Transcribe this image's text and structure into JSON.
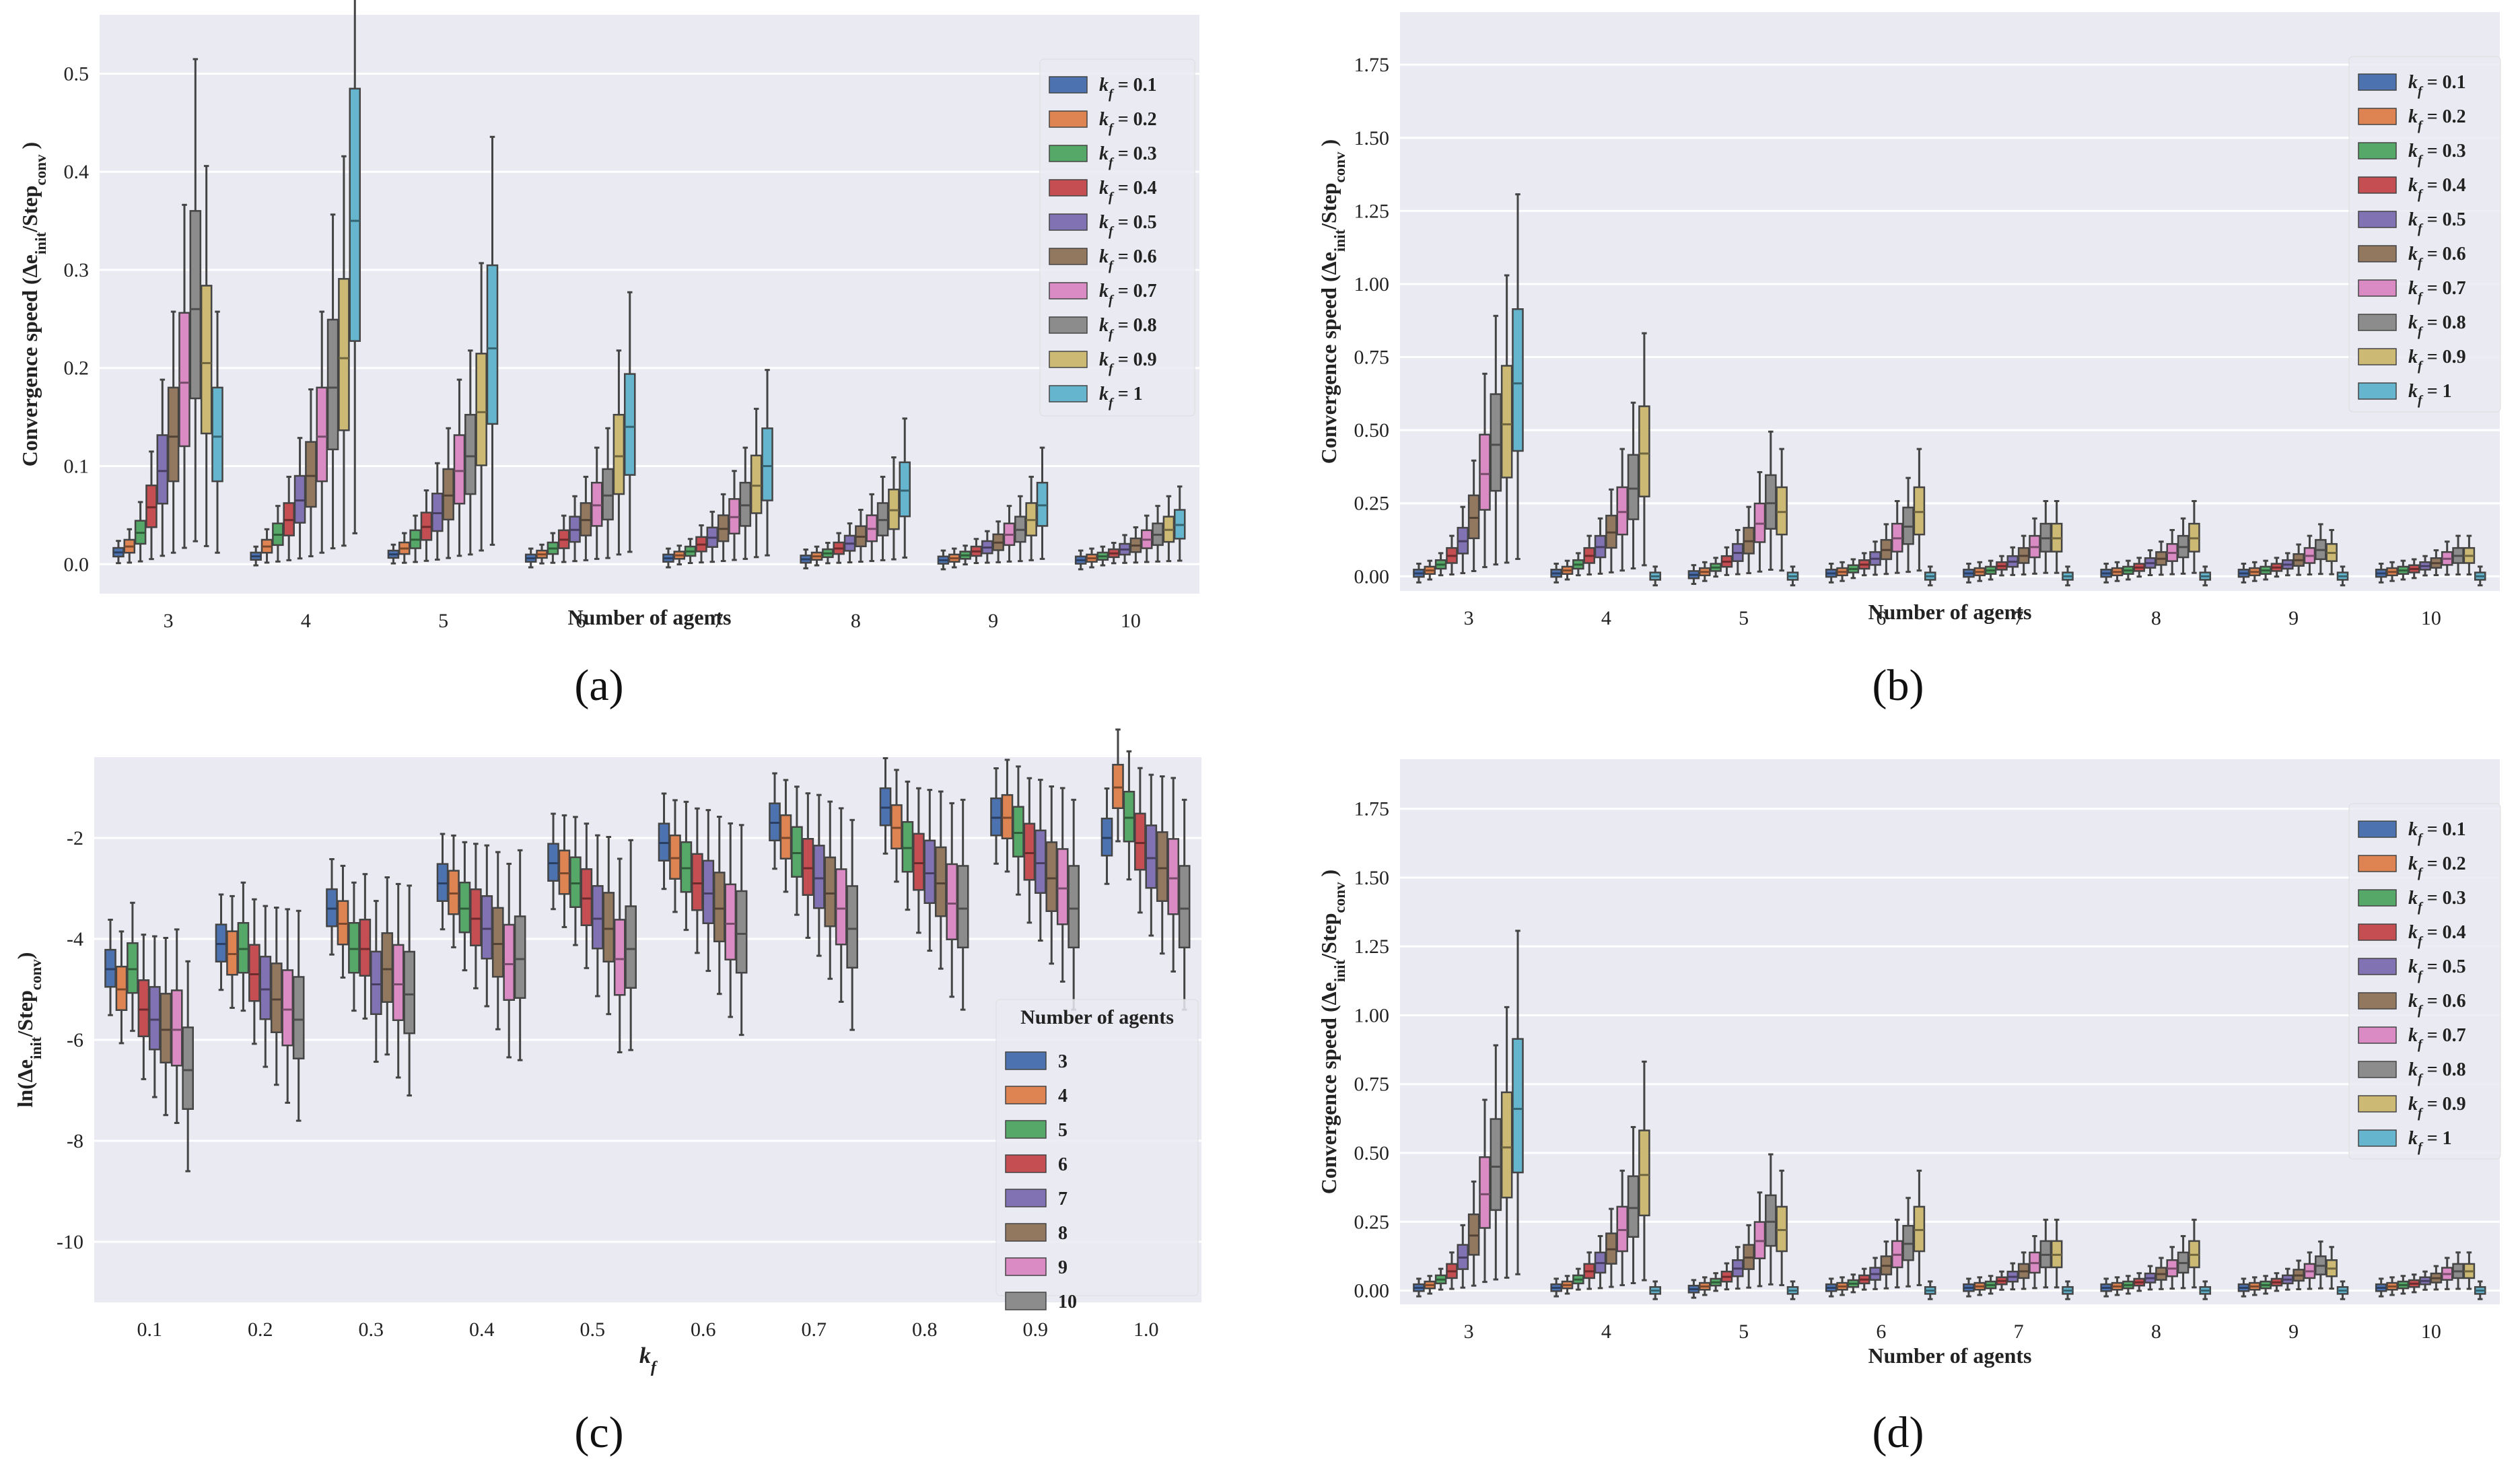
{
  "figure": {
    "captions": [
      "(a)",
      "(b)",
      "(c)",
      "(d)"
    ]
  },
  "chart_data": [
    {
      "id": "a",
      "type": "box",
      "title": "",
      "xlabel": "Number of agents",
      "ylabel": "Convergence speed (Δe_init/Step_conv )",
      "ylabel_parts": [
        "Convergence speed (Δe",
        "init",
        "/Step",
        "conv",
        " )"
      ],
      "categories": [
        "3",
        "4",
        "5",
        "6",
        "7",
        "8",
        "9",
        "10"
      ],
      "ylim": [
        -0.03,
        0.56
      ],
      "yticks": [
        0.0,
        0.1,
        0.2,
        0.3,
        0.4,
        0.5
      ],
      "ytick_labels": [
        "0.0",
        "0.1",
        "0.2",
        "0.3",
        "0.4",
        "0.5"
      ],
      "legend_title": "",
      "legend_location": "upper right",
      "legend": [
        {
          "label": "k_f = 0.1",
          "color": "#4c72b0"
        },
        {
          "label": "k_f = 0.2",
          "color": "#dd8452"
        },
        {
          "label": "k_f = 0.3",
          "color": "#55a868"
        },
        {
          "label": "k_f = 0.4",
          "color": "#c44e52"
        },
        {
          "label": "k_f = 0.5",
          "color": "#8172b3"
        },
        {
          "label": "k_f = 0.6",
          "color": "#937860"
        },
        {
          "label": "k_f = 0.7",
          "color": "#da8bc3"
        },
        {
          "label": "k_f = 0.8",
          "color": "#8c8c8c"
        },
        {
          "label": "k_f = 0.9",
          "color": "#ccb974"
        },
        {
          "label": "k_f = 1",
          "color": "#64b5cd"
        }
      ],
      "legend_parts": [
        [
          "k",
          "f",
          " = 0.1"
        ],
        [
          "k",
          "f",
          " = 0.2"
        ],
        [
          "k",
          "f",
          " = 0.3"
        ],
        [
          "k",
          "f",
          " = 0.4"
        ],
        [
          "k",
          "f",
          " = 0.5"
        ],
        [
          "k",
          "f",
          " = 0.6"
        ],
        [
          "k",
          "f",
          " = 0.7"
        ],
        [
          "k",
          "f",
          " = 0.8"
        ],
        [
          "k",
          "f",
          " = 0.9"
        ],
        [
          "k",
          "f",
          " = 1"
        ]
      ],
      "medians": [
        [
          0.012,
          0.018,
          0.032,
          0.058,
          0.095,
          0.13,
          0.185,
          0.26,
          0.205,
          0.13
        ],
        [
          0.008,
          0.018,
          0.03,
          0.045,
          0.065,
          0.09,
          0.13,
          0.18,
          0.21,
          0.35
        ],
        [
          0.01,
          0.016,
          0.025,
          0.038,
          0.052,
          0.07,
          0.095,
          0.11,
          0.155,
          0.22
        ],
        [
          0.006,
          0.01,
          0.016,
          0.025,
          0.035,
          0.045,
          0.06,
          0.07,
          0.11,
          0.14
        ],
        [
          0.006,
          0.009,
          0.013,
          0.02,
          0.027,
          0.036,
          0.048,
          0.06,
          0.08,
          0.1
        ],
        [
          0.005,
          0.008,
          0.011,
          0.016,
          0.021,
          0.028,
          0.036,
          0.045,
          0.055,
          0.075
        ],
        [
          0.004,
          0.006,
          0.009,
          0.013,
          0.017,
          0.022,
          0.03,
          0.035,
          0.045,
          0.06
        ],
        [
          0.004,
          0.006,
          0.008,
          0.011,
          0.015,
          0.019,
          0.025,
          0.03,
          0.035,
          0.04
        ]
      ]
    },
    {
      "id": "b",
      "type": "box",
      "title": "",
      "xlabel": "Number of agents",
      "ylabel": "Convergence speed (Δe_init/Step_conv )",
      "ylabel_parts": [
        "Convergence speed (Δe",
        "init",
        "/Step",
        "conv",
        " )"
      ],
      "categories": [
        "3",
        "4",
        "5",
        "6",
        "7",
        "8",
        "9",
        "10"
      ],
      "ylim": [
        -0.05,
        1.93
      ],
      "yticks": [
        0.0,
        0.25,
        0.5,
        0.75,
        1.0,
        1.25,
        1.5,
        1.75
      ],
      "ytick_labels": [
        "0.00",
        "0.25",
        "0.50",
        "0.75",
        "1.00",
        "1.25",
        "1.50",
        "1.75"
      ],
      "legend_title": "",
      "legend_location": "upper right",
      "legend": [
        {
          "label": "k_f = 0.1",
          "color": "#4c72b0"
        },
        {
          "label": "k_f = 0.2",
          "color": "#dd8452"
        },
        {
          "label": "k_f = 0.3",
          "color": "#55a868"
        },
        {
          "label": "k_f = 0.4",
          "color": "#c44e52"
        },
        {
          "label": "k_f = 0.5",
          "color": "#8172b3"
        },
        {
          "label": "k_f = 0.6",
          "color": "#937860"
        },
        {
          "label": "k_f = 0.7",
          "color": "#da8bc3"
        },
        {
          "label": "k_f = 0.8",
          "color": "#8c8c8c"
        },
        {
          "label": "k_f = 0.9",
          "color": "#ccb974"
        },
        {
          "label": "k_f = 1",
          "color": "#64b5cd"
        }
      ],
      "legend_parts": [
        [
          "k",
          "f",
          " = 0.1"
        ],
        [
          "k",
          "f",
          " = 0.2"
        ],
        [
          "k",
          "f",
          " = 0.3"
        ],
        [
          "k",
          "f",
          " = 0.4"
        ],
        [
          "k",
          "f",
          " = 0.5"
        ],
        [
          "k",
          "f",
          " = 0.6"
        ],
        [
          "k",
          "f",
          " = 0.7"
        ],
        [
          "k",
          "f",
          " = 0.8"
        ],
        [
          "k",
          "f",
          " = 0.9"
        ],
        [
          "k",
          "f",
          " = 1"
        ]
      ],
      "medians": [
        [
          0.01,
          0.02,
          0.04,
          0.07,
          0.12,
          0.2,
          0.35,
          0.45,
          0.52,
          0.66
        ],
        [
          0.01,
          0.02,
          0.04,
          0.07,
          0.1,
          0.15,
          0.22,
          0.3,
          0.42,
          0.0
        ],
        [
          0.005,
          0.015,
          0.03,
          0.05,
          0.08,
          0.12,
          0.18,
          0.25,
          0.22,
          0.0
        ],
        [
          0.01,
          0.015,
          0.025,
          0.04,
          0.06,
          0.09,
          0.13,
          0.17,
          0.22,
          0.0
        ],
        [
          0.01,
          0.015,
          0.02,
          0.035,
          0.05,
          0.07,
          0.1,
          0.13,
          0.13,
          0.0
        ],
        [
          0.01,
          0.015,
          0.02,
          0.03,
          0.045,
          0.06,
          0.08,
          0.1,
          0.13,
          0.0
        ],
        [
          0.01,
          0.015,
          0.02,
          0.03,
          0.04,
          0.055,
          0.07,
          0.09,
          0.08,
          0.0
        ],
        [
          0.01,
          0.015,
          0.02,
          0.025,
          0.035,
          0.045,
          0.06,
          0.07,
          0.07,
          0.0
        ]
      ]
    },
    {
      "id": "c",
      "type": "box",
      "title": "",
      "xlabel": "k_f",
      "xlabel_parts": [
        "k",
        "f",
        ""
      ],
      "ylabel": "ln(Δe_init/Step_conv)",
      "ylabel_parts": [
        "ln(Δe",
        "init",
        "/Step",
        "conv",
        ")"
      ],
      "categories": [
        "0.1",
        "0.2",
        "0.3",
        "0.4",
        "0.5",
        "0.6",
        "0.7",
        "0.8",
        "0.9",
        "1.0"
      ],
      "ylim": [
        -11.2,
        -0.4
      ],
      "yticks": [
        -2,
        -4,
        -6,
        -8,
        -10
      ],
      "ytick_labels": [
        "-2",
        "-4",
        "-6",
        "-8",
        "-10"
      ],
      "legend_title": "Number of agents",
      "legend_location": "lower right",
      "legend": [
        {
          "label": "3",
          "color": "#4c72b0"
        },
        {
          "label": "4",
          "color": "#dd8452"
        },
        {
          "label": "5",
          "color": "#55a868"
        },
        {
          "label": "6",
          "color": "#c44e52"
        },
        {
          "label": "7",
          "color": "#8172b3"
        },
        {
          "label": "8",
          "color": "#937860"
        },
        {
          "label": "9",
          "color": "#da8bc3"
        },
        {
          "label": "10",
          "color": "#8c8c8c"
        }
      ],
      "medians": [
        [
          -4.6,
          -5.0,
          -4.6,
          -5.4,
          -5.6,
          -5.8,
          -5.8,
          -6.6
        ],
        [
          -4.1,
          -4.3,
          -4.2,
          -4.7,
          -5.0,
          -5.2,
          -5.4,
          -5.6
        ],
        [
          -3.4,
          -3.7,
          -4.2,
          -4.2,
          -4.9,
          -4.6,
          -4.9,
          -5.1
        ],
        [
          -2.9,
          -3.1,
          -3.4,
          -3.6,
          -3.8,
          -4.1,
          -4.5,
          -4.4
        ],
        [
          -2.5,
          -2.7,
          -2.9,
          -3.2,
          -3.6,
          -3.8,
          -4.4,
          -4.2
        ],
        [
          -2.1,
          -2.4,
          -2.6,
          -2.9,
          -3.1,
          -3.4,
          -3.7,
          -3.9
        ],
        [
          -1.7,
          -2.0,
          -2.3,
          -2.6,
          -2.8,
          -3.1,
          -3.4,
          -3.8
        ],
        [
          -1.4,
          -1.8,
          -2.2,
          -2.5,
          -2.7,
          -2.9,
          -3.3,
          -3.4
        ],
        [
          -1.6,
          -1.6,
          -1.9,
          -2.3,
          -2.5,
          -2.8,
          -3.0,
          -3.4
        ],
        [
          -2.0,
          -1.0,
          -1.6,
          -2.1,
          -2.4,
          -2.6,
          -2.8,
          -3.4
        ]
      ]
    },
    {
      "id": "d",
      "type": "box",
      "title": "",
      "xlabel": "Number of agents",
      "ylabel": "Convergence speed (Δe_init/Step_conv )",
      "ylabel_parts": [
        "Convergence speed (Δe",
        "init",
        "/Step",
        "conv",
        " )"
      ],
      "categories": [
        "3",
        "4",
        "5",
        "6",
        "7",
        "8",
        "9",
        "10"
      ],
      "ylim": [
        -0.05,
        1.93
      ],
      "yticks": [
        0.0,
        0.25,
        0.5,
        0.75,
        1.0,
        1.25,
        1.5,
        1.75
      ],
      "ytick_labels": [
        "0.00",
        "0.25",
        "0.50",
        "0.75",
        "1.00",
        "1.25",
        "1.50",
        "1.75"
      ],
      "legend_title": "",
      "legend_location": "upper right",
      "legend": [
        {
          "label": "k_f = 0.1",
          "color": "#4c72b0"
        },
        {
          "label": "k_f = 0.2",
          "color": "#dd8452"
        },
        {
          "label": "k_f = 0.3",
          "color": "#55a868"
        },
        {
          "label": "k_f = 0.4",
          "color": "#c44e52"
        },
        {
          "label": "k_f = 0.5",
          "color": "#8172b3"
        },
        {
          "label": "k_f = 0.6",
          "color": "#937860"
        },
        {
          "label": "k_f = 0.7",
          "color": "#da8bc3"
        },
        {
          "label": "k_f = 0.8",
          "color": "#8c8c8c"
        },
        {
          "label": "k_f = 0.9",
          "color": "#ccb974"
        },
        {
          "label": "k_f = 1",
          "color": "#64b5cd"
        }
      ],
      "legend_parts": [
        [
          "k",
          "f",
          " = 0.1"
        ],
        [
          "k",
          "f",
          " = 0.2"
        ],
        [
          "k",
          "f",
          " = 0.3"
        ],
        [
          "k",
          "f",
          " = 0.4"
        ],
        [
          "k",
          "f",
          " = 0.5"
        ],
        [
          "k",
          "f",
          " = 0.6"
        ],
        [
          "k",
          "f",
          " = 0.7"
        ],
        [
          "k",
          "f",
          " = 0.8"
        ],
        [
          "k",
          "f",
          " = 0.9"
        ],
        [
          "k",
          "f",
          " = 1"
        ]
      ],
      "medians": [
        [
          0.01,
          0.02,
          0.04,
          0.07,
          0.12,
          0.2,
          0.35,
          0.45,
          0.52,
          0.66
        ],
        [
          0.01,
          0.02,
          0.04,
          0.07,
          0.1,
          0.15,
          0.22,
          0.3,
          0.42,
          0.0
        ],
        [
          0.005,
          0.015,
          0.03,
          0.05,
          0.08,
          0.12,
          0.18,
          0.25,
          0.22,
          0.0
        ],
        [
          0.01,
          0.015,
          0.025,
          0.04,
          0.06,
          0.09,
          0.13,
          0.17,
          0.22,
          0.0
        ],
        [
          0.01,
          0.015,
          0.02,
          0.035,
          0.05,
          0.07,
          0.1,
          0.13,
          0.13,
          0.0
        ],
        [
          0.01,
          0.015,
          0.02,
          0.03,
          0.045,
          0.06,
          0.08,
          0.1,
          0.13,
          0.0
        ],
        [
          0.01,
          0.015,
          0.02,
          0.03,
          0.04,
          0.055,
          0.07,
          0.09,
          0.08,
          0.0
        ],
        [
          0.01,
          0.015,
          0.02,
          0.025,
          0.035,
          0.045,
          0.06,
          0.07,
          0.07,
          0.0
        ]
      ]
    }
  ]
}
